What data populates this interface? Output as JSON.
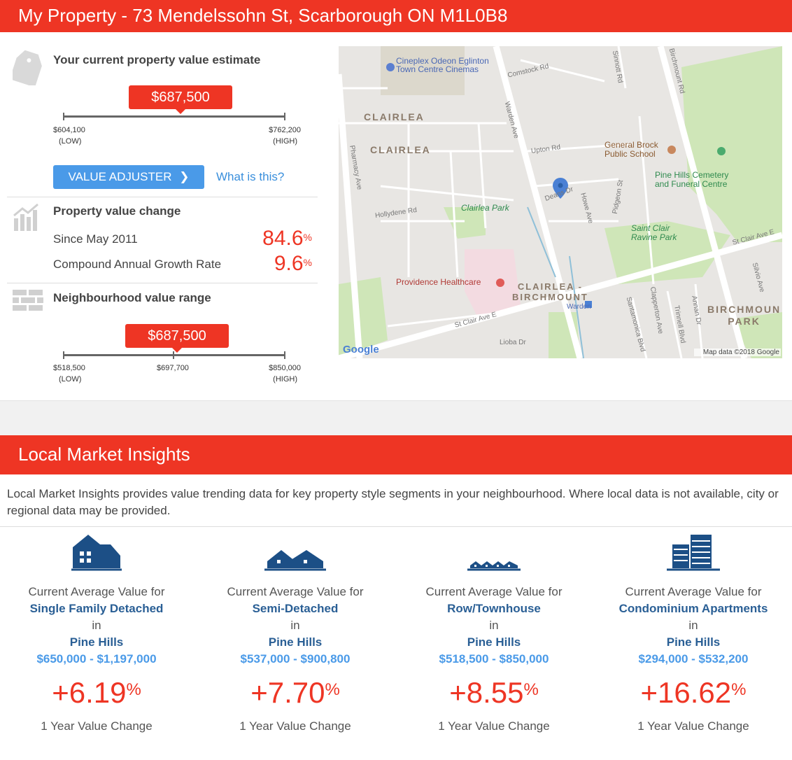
{
  "header": {
    "title": "My Property - 73 Mendelssohn St, Scarborough ON M1L0B8"
  },
  "estimate": {
    "heading": "Your current property value estimate",
    "value": "$687,500",
    "low_value": "$604,100",
    "low_label": "(LOW)",
    "high_value": "$762,200",
    "high_label": "(HIGH)",
    "position": 0.52,
    "adjuster_label": "VALUE ADJUSTER",
    "what_is_this": "What is this?"
  },
  "change": {
    "heading": "Property value change",
    "since_label": "Since May 2011",
    "since_value": "84.6",
    "cagr_label": "Compound Annual Growth Rate",
    "cagr_value": "9.6",
    "pct_symbol": "%"
  },
  "neighbourhood": {
    "heading": "Neighbourhood value range",
    "value": "$687,500",
    "low_value": "$518,500",
    "low_label": "(LOW)",
    "mid_value": "$697,700",
    "high_value": "$850,000",
    "high_label": "(HIGH)",
    "position": 0.5
  },
  "map": {
    "labels": {
      "cineplex": "Cineplex Odeon Eglinton",
      "cineplex2": "Town Centre Cinemas",
      "comstock": "Comstock Rd",
      "sinnott": "Sinnott Rd",
      "birchmount": "Birchmount Rd",
      "clairlea1": "CLAIRLEA",
      "clairlea2": "CLAIRLEA",
      "pharmacy": "Pharmacy Ave",
      "warden": "Warden Ave",
      "upton": "Upton Rd",
      "brock1": "General Brock",
      "brock2": "Public School",
      "pine1": "Pine Hills Cemetery",
      "pine2": "and Funeral Centre",
      "hollydene": "Hollydene Rd",
      "clairleapark": "Clairlea Park",
      "deans": "Deans Dr",
      "howe": "Howe Ave",
      "pidgeon": "Pidgeon St",
      "stclair_ravine1": "Saint Clair",
      "stclair_ravine2": "Ravine Park",
      "stclair_e": "St Clair Ave E",
      "stclair_w": "St Clair Ave E",
      "providence": "Providence Healthcare",
      "cb1": "CLAIRLEA -",
      "cb2": "BIRCHMOUNT",
      "warden_stn": "Warden",
      "santamonica": "Santamonica Blvd",
      "clapperton": "Clapperton Ave",
      "trinnell": "Trinnell Blvd",
      "annan": "Annan Dr",
      "silvio": "Silvio Ave",
      "bpark1": "BIRCHMOUN",
      "bpark2": "PARK",
      "lioba": "Lioba Dr",
      "google": "Google",
      "attribution": "Map data ©2018 Google"
    }
  },
  "insights": {
    "title": "Local Market Insights",
    "description": "Local Market Insights provides value trending data for key property style segments in your neighbourhood. Where local data is not available, city or regional data may be provided.",
    "cards": [
      {
        "icon": "single-family-house-icon",
        "intro": "Current Average Value for",
        "type": "Single Family Detached",
        "in": "in",
        "area": "Pine Hills",
        "range": "$650,000 - $1,197,000",
        "change": "+6.19",
        "pct": "%",
        "footer": "1 Year Value Change"
      },
      {
        "icon": "semi-detached-house-icon",
        "intro": "Current Average Value for",
        "type": "Semi-Detached",
        "in": "in",
        "area": "Pine Hills",
        "range": "$537,000 - $900,800",
        "change": "+7.70",
        "pct": "%",
        "footer": "1 Year Value Change"
      },
      {
        "icon": "townhouse-row-icon",
        "intro": "Current Average Value for",
        "type": "Row/Townhouse",
        "in": "in",
        "area": "Pine Hills",
        "range": "$518,500 - $850,000",
        "change": "+8.55",
        "pct": "%",
        "footer": "1 Year Value Change"
      },
      {
        "icon": "condo-building-icon",
        "intro": "Current Average Value for",
        "type": "Condominium Apartments",
        "in": "in",
        "area": "Pine Hills",
        "range": "$294,000 - $532,200",
        "change": "+16.62",
        "pct": "%",
        "footer": "1 Year Value Change"
      }
    ]
  },
  "colors": {
    "brand_red": "#ee3524",
    "link_blue": "#3a8fdc",
    "navy": "#2a5f95",
    "button_blue": "#4a9ae8"
  }
}
